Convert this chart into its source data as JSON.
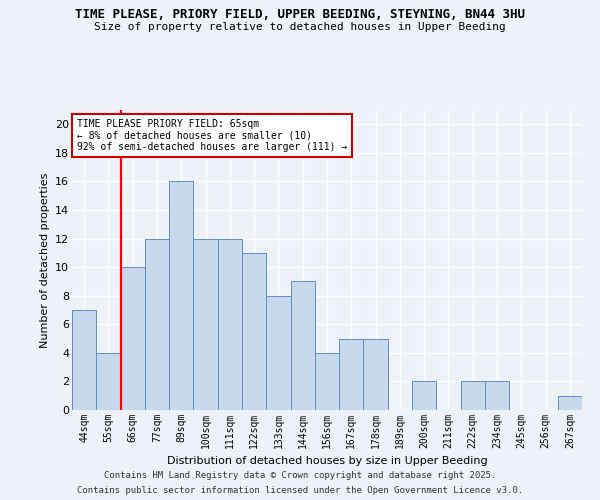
{
  "title_line1": "TIME PLEASE, PRIORY FIELD, UPPER BEEDING, STEYNING, BN44 3HU",
  "title_line2": "Size of property relative to detached houses in Upper Beeding",
  "xlabel": "Distribution of detached houses by size in Upper Beeding",
  "ylabel": "Number of detached properties",
  "categories": [
    "44sqm",
    "55sqm",
    "66sqm",
    "77sqm",
    "89sqm",
    "100sqm",
    "111sqm",
    "122sqm",
    "133sqm",
    "144sqm",
    "156sqm",
    "167sqm",
    "178sqm",
    "189sqm",
    "200sqm",
    "211sqm",
    "222sqm",
    "234sqm",
    "245sqm",
    "256sqm",
    "267sqm"
  ],
  "values": [
    7,
    4,
    10,
    12,
    16,
    12,
    12,
    11,
    8,
    9,
    4,
    5,
    5,
    0,
    2,
    0,
    2,
    2,
    0,
    0,
    1
  ],
  "bar_color": "#c9d9ed",
  "bar_edge_color": "#5b8fc9",
  "ylim": [
    0,
    21
  ],
  "yticks": [
    0,
    2,
    4,
    6,
    8,
    10,
    12,
    14,
    16,
    18,
    20
  ],
  "red_line_index": 1.5,
  "annotation_text": "TIME PLEASE PRIORY FIELD: 65sqm\n← 8% of detached houses are smaller (10)\n92% of semi-detached houses are larger (111) →",
  "annotation_box_color": "#ffffff",
  "annotation_box_edge": "#cc0000",
  "footer_line1": "Contains HM Land Registry data © Crown copyright and database right 2025.",
  "footer_line2": "Contains public sector information licensed under the Open Government Licence v3.0.",
  "bg_color": "#eef2f8",
  "grid_color": "#ffffff"
}
